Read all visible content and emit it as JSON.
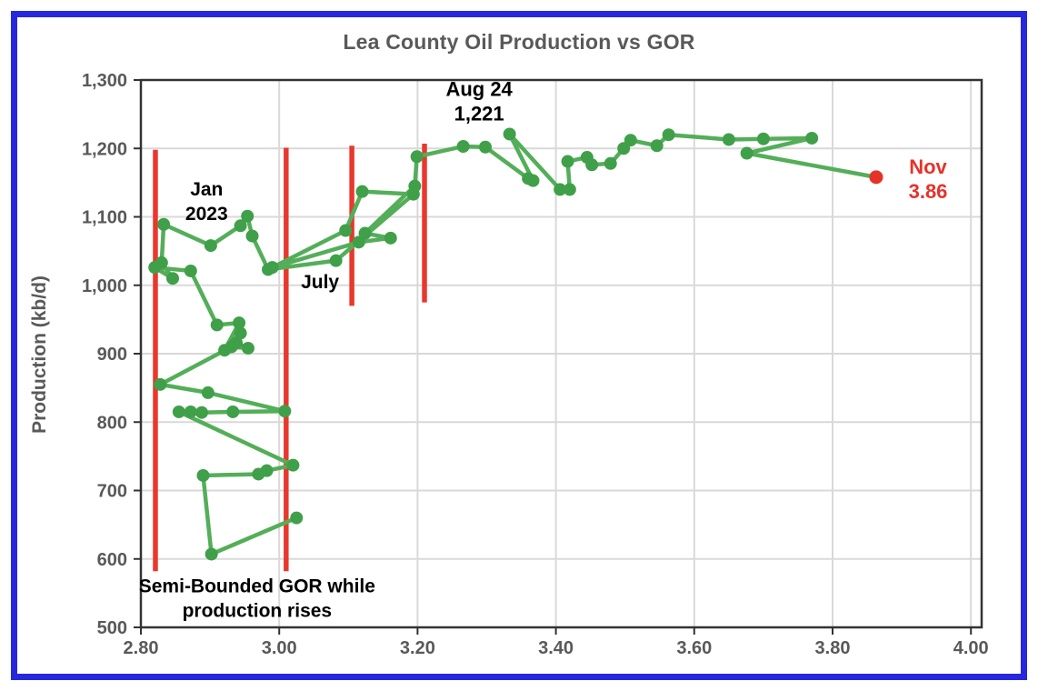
{
  "title": "Lea County Oil Production vs GOR",
  "colors": {
    "border_blue": "#2727de",
    "title_gray": "#595959",
    "tick_gray": "#595959",
    "grid_gray": "#d9d9d9",
    "frame_dark": "#333333",
    "series_line_green": "#54ae59",
    "series_marker_green": "#3fa049",
    "guide_red": "#e8382d",
    "highlight_red": "#e5332a",
    "annotation_black": "#000000"
  },
  "chart_data": {
    "type": "scatter",
    "title": "Lea County Oil Production vs GOR",
    "xlabel": "",
    "ylabel": "Production (kb/d)",
    "xlim": [
      2.8,
      4.0
    ],
    "ylim": [
      500,
      1300
    ],
    "grid": true,
    "x_ticks": [
      {
        "label": "2.80",
        "value": 2.8
      },
      {
        "label": "3.00",
        "value": 3.0
      },
      {
        "label": "3.20",
        "value": 3.2
      },
      {
        "label": "3.40",
        "value": 3.4
      },
      {
        "label": "3.60",
        "value": 3.6
      },
      {
        "label": "3.80",
        "value": 3.8
      },
      {
        "label": "4.00",
        "value": 4.0
      }
    ],
    "y_ticks": [
      {
        "label": "500",
        "value": 500
      },
      {
        "label": "600",
        "value": 600
      },
      {
        "label": "700",
        "value": 700
      },
      {
        "label": "800",
        "value": 800
      },
      {
        "label": "900",
        "value": 900
      },
      {
        "label": "1,000",
        "value": 1000
      },
      {
        "label": "1,100",
        "value": 1100
      },
      {
        "label": "1,200",
        "value": 1200
      },
      {
        "label": "1,300",
        "value": 1300
      }
    ],
    "series": [
      {
        "name": "Monthly production vs GOR path",
        "points": [
          [
            3.025,
            660
          ],
          [
            2.902,
            607
          ],
          [
            2.89,
            722
          ],
          [
            2.97,
            724
          ],
          [
            2.982,
            729
          ],
          [
            3.02,
            737
          ],
          [
            2.855,
            815
          ],
          [
            2.872,
            815
          ],
          [
            2.888,
            814
          ],
          [
            2.933,
            815
          ],
          [
            3.008,
            816
          ],
          [
            2.897,
            843
          ],
          [
            2.828,
            855
          ],
          [
            2.931,
            910
          ],
          [
            2.955,
            908
          ],
          [
            2.938,
            916
          ],
          [
            2.944,
            930
          ],
          [
            2.921,
            905
          ],
          [
            2.942,
            945
          ],
          [
            2.91,
            942
          ],
          [
            2.872,
            1021
          ],
          [
            2.82,
            1026
          ],
          [
            2.846,
            1010
          ],
          [
            2.83,
            1033
          ],
          [
            2.833,
            1089
          ],
          [
            2.901,
            1058
          ],
          [
            2.944,
            1087
          ],
          [
            2.954,
            1101
          ],
          [
            2.961,
            1072
          ],
          [
            2.984,
            1023
          ],
          [
            3.082,
            1036
          ],
          [
            3.194,
            1133
          ],
          [
            3.12,
            1137
          ],
          [
            3.096,
            1080
          ],
          [
            2.99,
            1026
          ],
          [
            3.115,
            1063
          ],
          [
            3.161,
            1069
          ],
          [
            3.124,
            1076
          ],
          [
            3.196,
            1145
          ],
          [
            3.199,
            1188
          ],
          [
            3.266,
            1203
          ],
          [
            3.298,
            1202
          ],
          [
            3.36,
            1156
          ],
          [
            3.367,
            1153
          ],
          [
            3.333,
            1221
          ],
          [
            3.406,
            1140
          ],
          [
            3.42,
            1140
          ],
          [
            3.417,
            1181
          ],
          [
            3.445,
            1187
          ],
          [
            3.452,
            1176
          ],
          [
            3.479,
            1178
          ],
          [
            3.498,
            1200
          ],
          [
            3.508,
            1212
          ],
          [
            3.546,
            1204
          ],
          [
            3.563,
            1220
          ],
          [
            3.65,
            1213
          ],
          [
            3.7,
            1214
          ],
          [
            3.77,
            1215
          ],
          [
            3.676,
            1193
          ],
          [
            3.863,
            1158
          ]
        ]
      }
    ],
    "highlight_point": {
      "x": 3.863,
      "y": 1158,
      "note": "Nov, GOR 3.86"
    },
    "red_vlines": [
      {
        "x": 2.821,
        "y_from": 582,
        "y_to": 1198
      },
      {
        "x": 3.01,
        "y_from": 582,
        "y_to": 1201
      },
      {
        "x": 3.105,
        "y_from": 970,
        "y_to": 1204
      },
      {
        "x": 3.21,
        "y_from": 975,
        "y_to": 1207
      }
    ],
    "annotations": [
      {
        "id": "jan-2023",
        "lines": [
          "Jan",
          "2023"
        ],
        "x": 2.895,
        "y_value": 1131,
        "color": "#000000",
        "size": 21
      },
      {
        "id": "july",
        "lines": [
          "July"
        ],
        "x": 3.059,
        "y_value": 996,
        "color": "#000000",
        "size": 21
      },
      {
        "id": "aug-24-peak",
        "lines": [
          "Aug 24",
          "1,221"
        ],
        "x": 3.289,
        "y_value": 1277,
        "color": "#000000",
        "size": 22
      },
      {
        "id": "nov-gor",
        "lines": [
          "Nov",
          "3.86"
        ],
        "x": 3.938,
        "y_value": 1163,
        "color": "#e5332a",
        "size": 22
      },
      {
        "id": "semi-bounded",
        "lines": [
          "Semi-Bounded GOR while",
          "production rises"
        ],
        "x": 2.968,
        "y_value": 551,
        "color": "#000000",
        "size": 21
      }
    ]
  }
}
